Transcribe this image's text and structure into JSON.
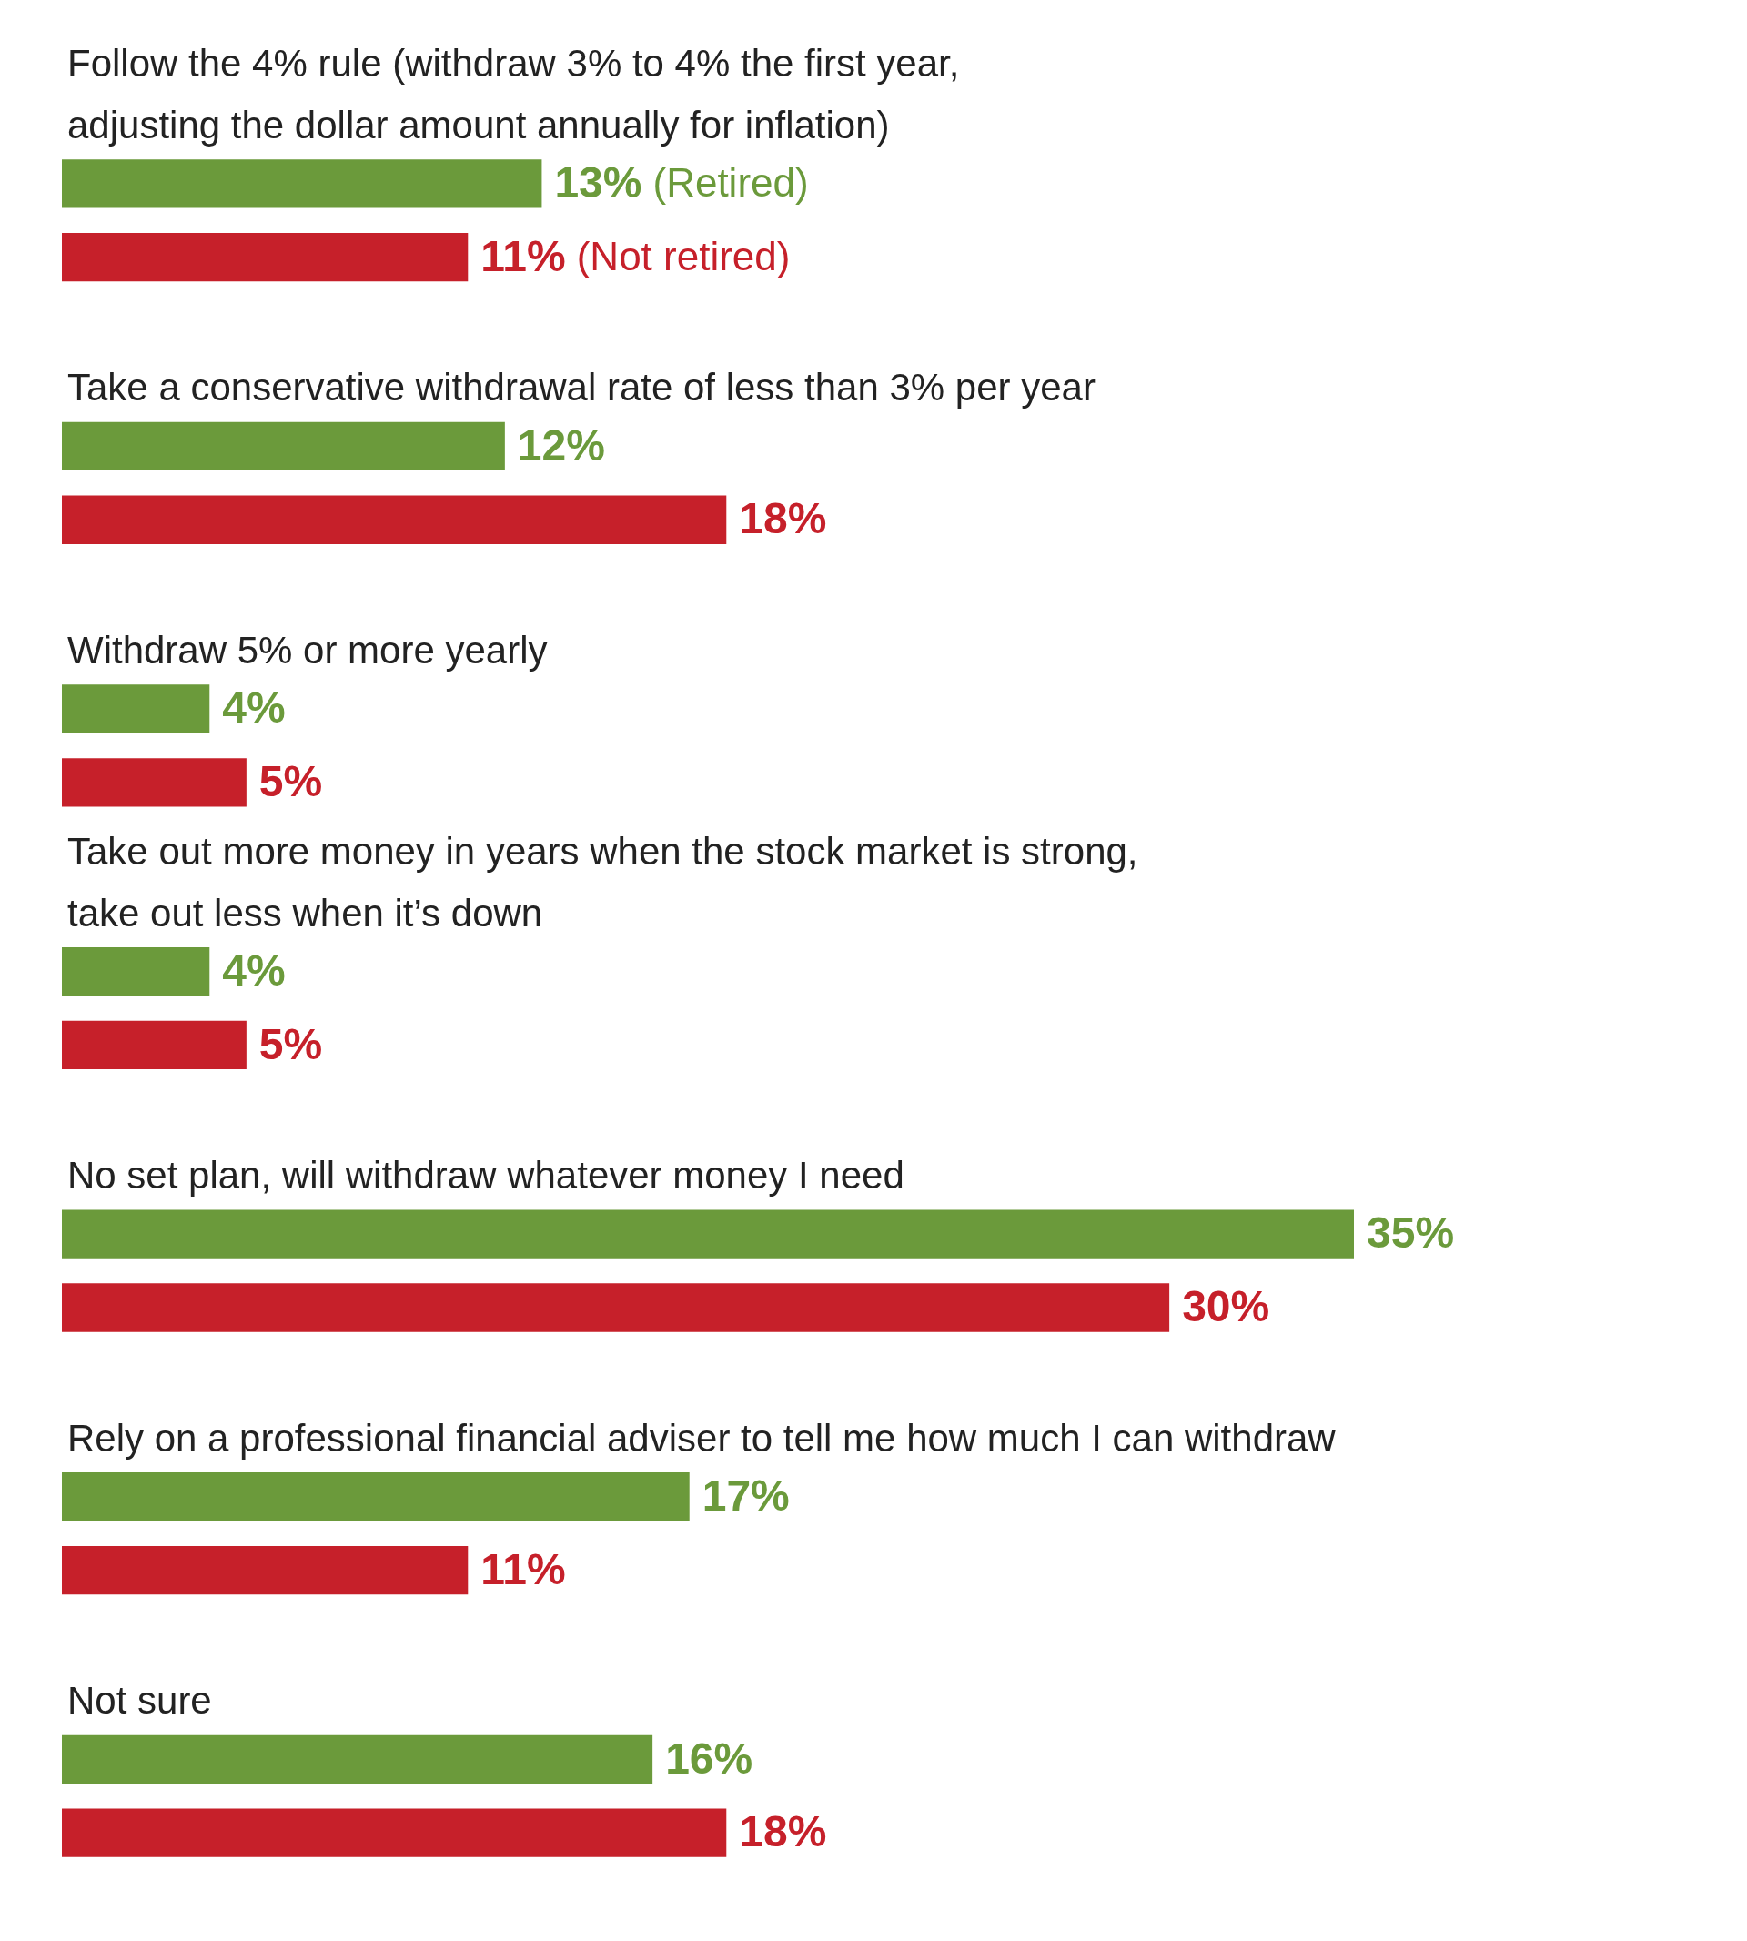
{
  "chart_data": {
    "type": "bar",
    "orientation": "horizontal",
    "categories": [
      "Follow the 4% rule (withdraw 3% to 4% the first year, adjusting the dollar amount annually for inflation)",
      "Take a conservative withdrawal rate of less than 3% per year",
      "Withdraw 5% or more yearly",
      "Take out more money in years when the stock market is strong, take out less when it’s down",
      "No set plan, will withdraw whatever money I need",
      "Rely on a professional financial adviser to tell me how much I can withdraw",
      "Not sure"
    ],
    "series": [
      {
        "name": "(Retired)",
        "color": "#6b9a3b",
        "values": [
          13,
          12,
          4,
          4,
          35,
          17,
          16
        ],
        "value_labels": [
          "13%",
          "12%",
          "4%",
          "4%",
          "35%",
          "17%",
          "16%"
        ]
      },
      {
        "name": "(Not retired)",
        "color": "#c6202a",
        "values": [
          11,
          18,
          5,
          5,
          30,
          11,
          18
        ],
        "value_labels": [
          "11%",
          "18%",
          "5%",
          "5%",
          "30%",
          "11%",
          "18%"
        ]
      }
    ]
  }
}
